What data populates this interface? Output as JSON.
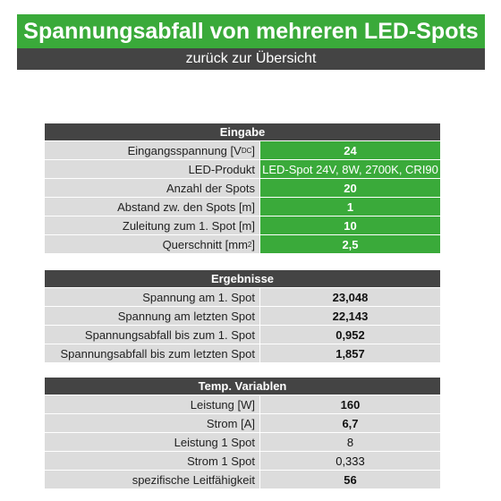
{
  "colors": {
    "green": "#3aaa3a",
    "dark": "#444444",
    "row": "#dcdcdc",
    "white": "#ffffff"
  },
  "header": {
    "title": "Spannungsabfall von mehreren LED-Spots",
    "back_link": "zurück zur Übersicht"
  },
  "eingabe": {
    "heading": "Eingabe",
    "rows": [
      {
        "label_main": "Eingangsspannung [V",
        "label_sub": "DC",
        "label_end": "]",
        "value": "24"
      },
      {
        "label": "LED-Produkt",
        "value": "LED-Spot 24V, 8W, 2700K, CRI90"
      },
      {
        "label": "Anzahl der Spots",
        "value": "20"
      },
      {
        "label": "Abstand zw. den Spots [m]",
        "value": "1"
      },
      {
        "label": "Zuleitung zum 1. Spot [m]",
        "value": "10"
      },
      {
        "label_main": "Querschnitt [mm",
        "label_sup": "2",
        "label_end": "]",
        "value": "2,5"
      }
    ]
  },
  "ergebnisse": {
    "heading": "Ergebnisse",
    "rows": [
      {
        "label": "Spannung am 1. Spot",
        "value": "23,048"
      },
      {
        "label": "Spannung am letzten Spot",
        "value": "22,143"
      },
      {
        "label": "Spannungsabfall bis zum 1. Spot",
        "value": "0,952"
      },
      {
        "label": "Spannungsabfall bis zum letzten Spot",
        "value": "1,857"
      }
    ]
  },
  "temp": {
    "heading": "Temp. Variablen",
    "rows": [
      {
        "label": "Leistung [W]",
        "value": "160"
      },
      {
        "label": "Strom [A]",
        "value": "6,7"
      },
      {
        "label": "Leistung 1 Spot",
        "value": "8"
      },
      {
        "label": "Strom 1 Spot",
        "value": "0,333"
      },
      {
        "label": "spezifische Leitfähigkeit",
        "value": "56"
      }
    ]
  }
}
